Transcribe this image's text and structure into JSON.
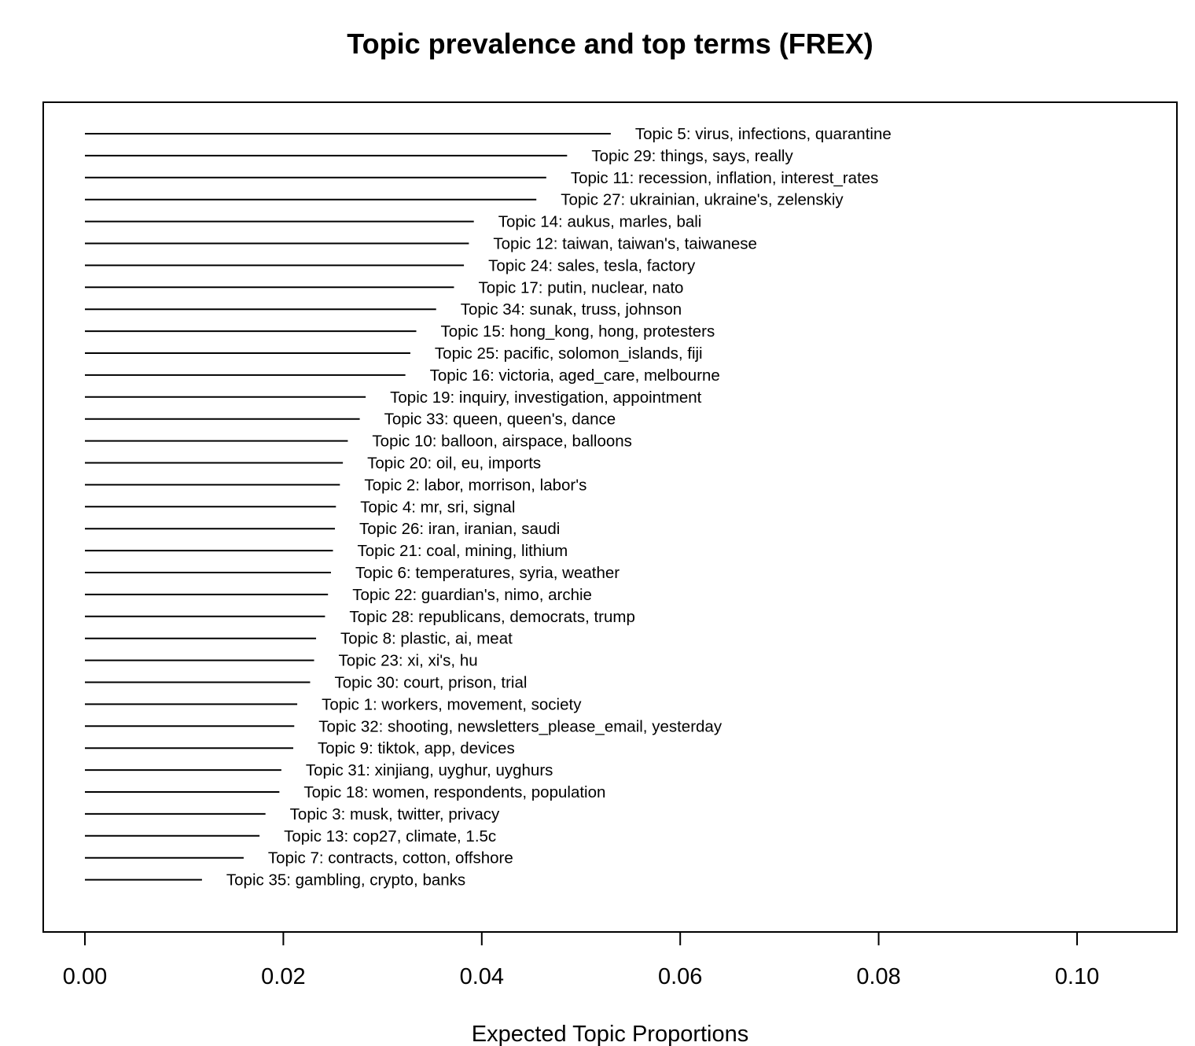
{
  "chart_data": {
    "type": "bar",
    "title": "Topic prevalence and top terms (FREX)",
    "xlabel": "Expected Topic Proportions",
    "ylabel": "",
    "xlim": [
      0.0,
      0.11
    ],
    "x_ticks": [
      0.0,
      0.02,
      0.04,
      0.06,
      0.08,
      0.1
    ],
    "x_tick_labels": [
      "0.00",
      "0.02",
      "0.04",
      "0.06",
      "0.08",
      "0.10"
    ],
    "orientation": "horizontal",
    "grid": false,
    "bars": [
      {
        "label": "Topic 5: virus, infections, quarantine",
        "value": 0.053
      },
      {
        "label": "Topic 29: things, says, really",
        "value": 0.0486
      },
      {
        "label": "Topic 11: recession, inflation, interest_rates",
        "value": 0.0465
      },
      {
        "label": "Topic 27: ukrainian, ukraine's, zelenskiy",
        "value": 0.0455
      },
      {
        "label": "Topic 14: aukus, marles, bali",
        "value": 0.0392
      },
      {
        "label": "Topic 12: taiwan, taiwan's, taiwanese",
        "value": 0.0387
      },
      {
        "label": "Topic 24: sales, tesla, factory",
        "value": 0.0382
      },
      {
        "label": "Topic 17: putin, nuclear, nato",
        "value": 0.0372
      },
      {
        "label": "Topic 34: sunak, truss, johnson",
        "value": 0.0354
      },
      {
        "label": "Topic 15: hong_kong, hong, protesters",
        "value": 0.0334
      },
      {
        "label": "Topic 25: pacific, solomon_islands, fiji",
        "value": 0.0328
      },
      {
        "label": "Topic 16: victoria, aged_care, melbourne",
        "value": 0.0323
      },
      {
        "label": "Topic 19: inquiry, investigation, appointment",
        "value": 0.0283
      },
      {
        "label": "Topic 33: queen, queen's, dance",
        "value": 0.0277
      },
      {
        "label": "Topic 10: balloon, airspace, balloons",
        "value": 0.0265
      },
      {
        "label": "Topic 20: oil, eu, imports",
        "value": 0.026
      },
      {
        "label": "Topic 2: labor, morrison, labor's",
        "value": 0.0257
      },
      {
        "label": "Topic 4: mr, sri, signal",
        "value": 0.0253
      },
      {
        "label": "Topic 26: iran, iranian, saudi",
        "value": 0.0252
      },
      {
        "label": "Topic 21: coal, mining, lithium",
        "value": 0.025
      },
      {
        "label": "Topic 6: temperatures, syria, weather",
        "value": 0.0248
      },
      {
        "label": "Topic 22: guardian's, nimo, archie",
        "value": 0.0245
      },
      {
        "label": "Topic 28: republicans, democrats, trump",
        "value": 0.0242
      },
      {
        "label": "Topic 8: plastic, ai, meat",
        "value": 0.0233
      },
      {
        "label": "Topic 23: xi, xi's, hu",
        "value": 0.0231
      },
      {
        "label": "Topic 30: court, prison, trial",
        "value": 0.0227
      },
      {
        "label": "Topic 1: workers, movement, society",
        "value": 0.0214
      },
      {
        "label": "Topic 32: shooting, newsletters_please_email, yesterday",
        "value": 0.0211
      },
      {
        "label": "Topic 9: tiktok, app, devices",
        "value": 0.021
      },
      {
        "label": "Topic 31: xinjiang, uyghur, uyghurs",
        "value": 0.0198
      },
      {
        "label": "Topic 18: women, respondents, population",
        "value": 0.0196
      },
      {
        "label": "Topic 3: musk, twitter, privacy",
        "value": 0.0182
      },
      {
        "label": "Topic 13: cop27, climate, 1.5c",
        "value": 0.0176
      },
      {
        "label": "Topic 7: contracts, cotton, offshore",
        "value": 0.016
      },
      {
        "label": "Topic 35: gambling, crypto, banks",
        "value": 0.0118
      }
    ]
  }
}
